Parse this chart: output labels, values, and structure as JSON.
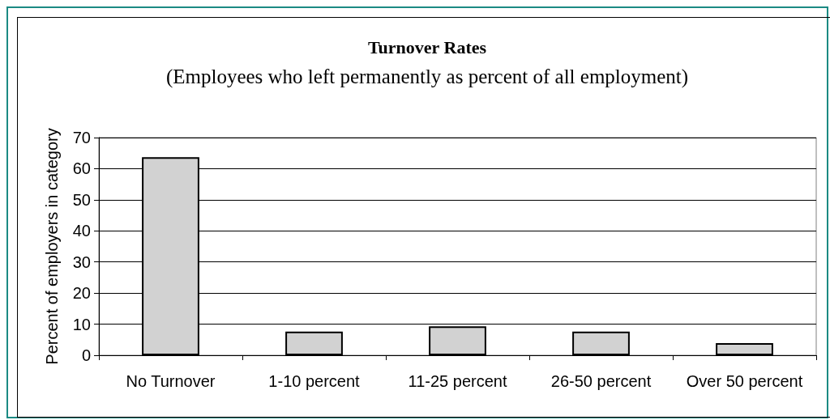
{
  "chart_data": {
    "type": "bar",
    "title": "Turnover Rates",
    "subtitle": "(Employees who left permanently as percent of all employment)",
    "ylabel": "Percent of employers in category",
    "categories": [
      "No Turnover",
      "1-10 percent",
      "11-25 percent",
      "26-50 percent",
      "Over 50 percent"
    ],
    "values": [
      63.7,
      7.6,
      9.3,
      7.6,
      3.9
    ],
    "color": "#d2d2d2",
    "ylim": [
      0,
      70
    ],
    "yticks": [
      0,
      10,
      20,
      30,
      40,
      50,
      60,
      70
    ],
    "grid": "y"
  }
}
